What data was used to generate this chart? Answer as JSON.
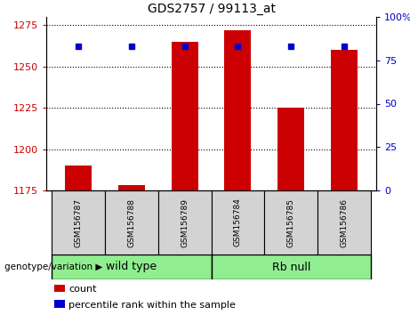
{
  "title": "GDS2757 / 99113_at",
  "samples": [
    "GSM156787",
    "GSM156788",
    "GSM156789",
    "GSM156784",
    "GSM156785",
    "GSM156786"
  ],
  "counts": [
    1190,
    1178,
    1265,
    1272,
    1225,
    1260
  ],
  "percentiles": [
    83,
    83,
    83,
    83,
    83,
    83
  ],
  "ylim_left": [
    1175,
    1280
  ],
  "ylim_right": [
    0,
    100
  ],
  "yticks_left": [
    1175,
    1200,
    1225,
    1250,
    1275
  ],
  "yticks_right": [
    0,
    25,
    50,
    75,
    100
  ],
  "bar_color": "#cc0000",
  "dot_color": "#0000cc",
  "bar_width": 0.5,
  "label_area_color": "#d3d3d3",
  "legend_count_color": "#cc0000",
  "legend_pct_color": "#0000cc"
}
